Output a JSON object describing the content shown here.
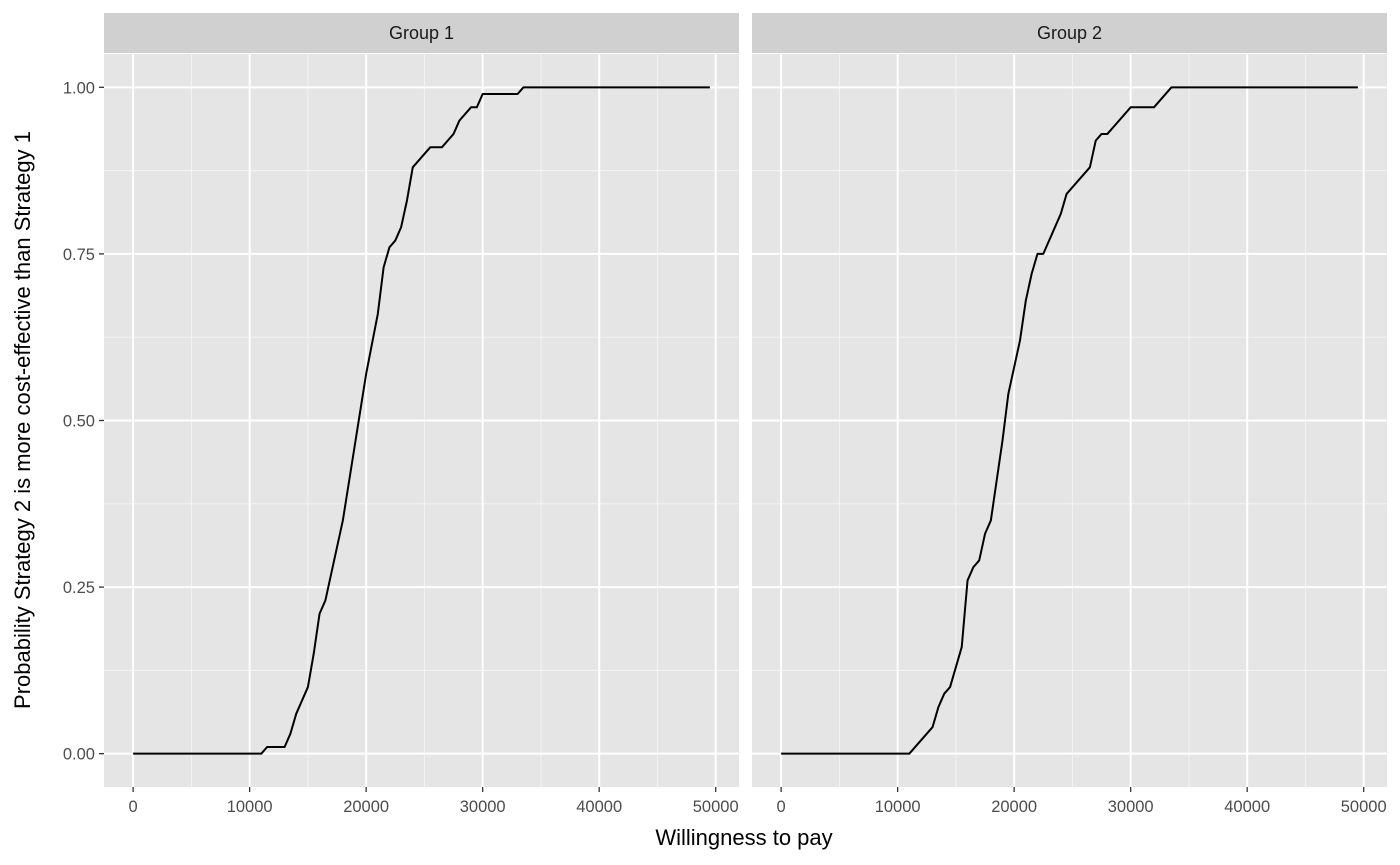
{
  "chart_data": {
    "type": "line",
    "xlabel": "Willingness to pay",
    "ylabel": "Probability Strategy 2 is more cost-effective than Strategy 1",
    "xlim": [
      -2500,
      52000
    ],
    "ylim": [
      -0.05,
      1.05
    ],
    "x_ticks": [
      0,
      10000,
      20000,
      30000,
      40000,
      50000
    ],
    "x_tick_labels": [
      "0",
      "10000",
      "20000",
      "30000",
      "40000",
      "50000"
    ],
    "y_ticks": [
      0,
      0.25,
      0.5,
      0.75,
      1.0
    ],
    "y_tick_labels": [
      "0.00",
      "0.25",
      "0.50",
      "0.75",
      "1.00"
    ],
    "grid": true,
    "background": "#e5e5e5",
    "strip_background": "#d0d0d0",
    "line_color": "#000000",
    "grid_color": "#ffffff",
    "panels": [
      {
        "label": "Group 1",
        "x": [
          0,
          11000,
          11500,
          13000,
          13500,
          14000,
          15000,
          15500,
          16000,
          16500,
          18000,
          19000,
          20000,
          21000,
          21500,
          22000,
          22500,
          23000,
          23500,
          24000,
          25000,
          25500,
          26500,
          27000,
          27500,
          28000,
          29000,
          29500,
          30000,
          33000,
          33500,
          49500
        ],
        "y": [
          0,
          0,
          0.01,
          0.01,
          0.03,
          0.06,
          0.1,
          0.15,
          0.21,
          0.23,
          0.35,
          0.46,
          0.57,
          0.66,
          0.73,
          0.76,
          0.77,
          0.79,
          0.83,
          0.88,
          0.9,
          0.91,
          0.91,
          0.92,
          0.93,
          0.95,
          0.97,
          0.97,
          0.99,
          0.99,
          1.0,
          1.0
        ]
      },
      {
        "label": "Group 2",
        "x": [
          0,
          11000,
          13000,
          13500,
          14000,
          14500,
          15500,
          16000,
          16500,
          17000,
          17500,
          18000,
          19000,
          19500,
          20500,
          21000,
          21500,
          22000,
          22500,
          24000,
          24500,
          26500,
          27000,
          27500,
          28000,
          30000,
          32000,
          33500,
          49500
        ],
        "y": [
          0,
          0,
          0.04,
          0.07,
          0.09,
          0.1,
          0.16,
          0.26,
          0.28,
          0.29,
          0.33,
          0.35,
          0.47,
          0.54,
          0.62,
          0.68,
          0.72,
          0.75,
          0.75,
          0.81,
          0.84,
          0.88,
          0.92,
          0.93,
          0.93,
          0.97,
          0.97,
          1.0,
          1.0
        ]
      }
    ]
  }
}
